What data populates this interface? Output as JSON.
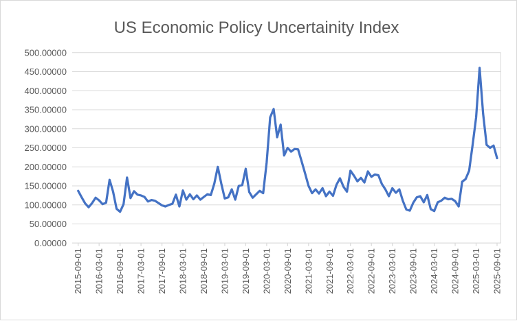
{
  "chart": {
    "colors": {
      "line": "#4472C4",
      "gridline": "#D9D9D9",
      "axis_line": "#D9D9D9",
      "text": "#595959",
      "title_text": "#595959",
      "background": "#FFFFFF",
      "border": "#D9D9D9"
    }
  },
  "chart_data": {
    "type": "line",
    "title": "US Economic Policy Uncertainity Index",
    "xlabel": "",
    "ylabel": "",
    "ylim": [
      0,
      500
    ],
    "y_ticks": [
      0,
      50,
      100,
      150,
      200,
      250,
      300,
      350,
      400,
      450,
      500
    ],
    "y_tick_labels": [
      "0.00000",
      "50.00000",
      "100.00000",
      "150.00000",
      "200.00000",
      "250.00000",
      "300.00000",
      "350.00000",
      "400.00000",
      "450.00000",
      "500.00000"
    ],
    "x_tick_labels": [
      "2015-09-01",
      "2016-03-01",
      "2016-09-01",
      "2017-03-01",
      "2017-09-01",
      "2018-03-01",
      "2018-09-01",
      "2019-03-01",
      "2019-09-01",
      "2020-03-01",
      "2020-09-01",
      "2021-03-01",
      "2021-09-01",
      "2022-03-01",
      "2022-09-01",
      "2023-03-01",
      "2023-09-01",
      "2024-03-01",
      "2024-09-01",
      "2025-03-01",
      "2025-09-01"
    ],
    "grid": "horizontal-major",
    "legend": "none",
    "x": [
      "2015-09",
      "2015-10",
      "2015-11",
      "2015-12",
      "2016-01",
      "2016-02",
      "2016-03",
      "2016-04",
      "2016-05",
      "2016-06",
      "2016-07",
      "2016-08",
      "2016-09",
      "2016-10",
      "2016-11",
      "2016-12",
      "2017-01",
      "2017-02",
      "2017-03",
      "2017-04",
      "2017-05",
      "2017-06",
      "2017-07",
      "2017-08",
      "2017-09",
      "2017-10",
      "2017-11",
      "2017-12",
      "2018-01",
      "2018-02",
      "2018-03",
      "2018-04",
      "2018-05",
      "2018-06",
      "2018-07",
      "2018-08",
      "2018-09",
      "2018-10",
      "2018-11",
      "2018-12",
      "2019-01",
      "2019-02",
      "2019-03",
      "2019-04",
      "2019-05",
      "2019-06",
      "2019-07",
      "2019-08",
      "2019-09",
      "2019-10",
      "2019-11",
      "2019-12",
      "2020-01",
      "2020-02",
      "2020-03",
      "2020-04",
      "2020-05",
      "2020-06",
      "2020-07",
      "2020-08",
      "2020-09",
      "2020-10",
      "2020-11",
      "2020-12",
      "2021-01",
      "2021-02",
      "2021-03",
      "2021-04",
      "2021-05",
      "2021-06",
      "2021-07",
      "2021-08",
      "2021-09",
      "2021-10",
      "2021-11",
      "2021-12",
      "2022-01",
      "2022-02",
      "2022-03",
      "2022-04",
      "2022-05",
      "2022-06",
      "2022-07",
      "2022-08",
      "2022-09",
      "2022-10",
      "2022-11",
      "2022-12",
      "2023-01",
      "2023-02",
      "2023-03",
      "2023-04",
      "2023-05",
      "2023-06",
      "2023-07",
      "2023-08",
      "2023-09",
      "2023-10",
      "2023-11",
      "2023-12",
      "2024-01",
      "2024-02",
      "2024-03",
      "2024-04",
      "2024-05",
      "2024-06",
      "2024-07",
      "2024-08",
      "2024-09",
      "2024-10",
      "2024-11",
      "2024-12",
      "2025-01",
      "2025-02",
      "2025-03",
      "2025-04",
      "2025-05",
      "2025-06",
      "2025-07",
      "2025-08",
      "2025-09"
    ],
    "values": [
      137,
      120,
      104,
      94,
      105,
      119,
      112,
      102,
      106,
      166,
      135,
      90,
      82,
      102,
      172,
      118,
      136,
      127,
      125,
      121,
      109,
      113,
      111,
      105,
      99,
      96,
      100,
      103,
      127,
      96,
      138,
      114,
      128,
      115,
      125,
      114,
      121,
      128,
      126,
      156,
      200,
      156,
      117,
      120,
      141,
      114,
      150,
      152,
      195,
      134,
      119,
      128,
      137,
      131,
      212,
      330,
      352,
      278,
      311,
      230,
      250,
      240,
      247,
      246,
      215,
      183,
      150,
      131,
      141,
      130,
      144,
      123,
      135,
      124,
      153,
      170,
      148,
      135,
      190,
      177,
      162,
      171,
      159,
      188,
      174,
      180,
      178,
      155,
      141,
      123,
      144,
      132,
      141,
      111,
      88,
      85,
      106,
      120,
      123,
      107,
      126,
      89,
      84,
      107,
      111,
      119,
      115,
      116,
      110,
      96,
      161,
      168,
      190,
      258,
      330,
      460,
      340,
      258,
      250,
      256,
      223
    ]
  }
}
